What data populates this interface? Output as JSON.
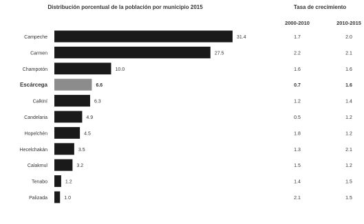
{
  "chart_data": {
    "type": "bar",
    "orientation": "horizontal",
    "title": "Distribución porcentual de la población por municipio 2015",
    "categories": [
      "Campeche",
      "Carmen",
      "Champotón",
      "Escárcega",
      "Calkiní",
      "Candelaria",
      "Hopelchén",
      "Hecelchakán",
      "Calakmul",
      "Tenabo",
      "Palizada"
    ],
    "values": [
      31.4,
      27.5,
      10.0,
      6.6,
      6.3,
      4.9,
      4.5,
      3.5,
      3.2,
      1.2,
      1.0
    ],
    "value_labels": [
      "31.4",
      "27.5",
      "10.0",
      "6.6",
      "6.3",
      "4.9",
      "4.5",
      "3.5",
      "3.2",
      "1.2",
      "1.0"
    ],
    "highlight": "Escárcega",
    "colors": {
      "bar": "#1a1a1a",
      "highlight": "#8c8c8c",
      "text": "#333333"
    },
    "growth_table": {
      "title": "Tasa de crecimiento",
      "columns": [
        "2000-2010",
        "2010-2015"
      ],
      "rows": [
        [
          "1.7",
          "2.0"
        ],
        [
          "2.2",
          "2.1"
        ],
        [
          "1.6",
          "1.6"
        ],
        [
          "0.7",
          "1.6"
        ],
        [
          "1.2",
          "1.4"
        ],
        [
          "0.5",
          "1.2"
        ],
        [
          "1.8",
          "1.2"
        ],
        [
          "1.3",
          "2.1"
        ],
        [
          "1.5",
          "1.2"
        ],
        [
          "1.4",
          "1.5"
        ],
        [
          "2.1",
          "1.5"
        ]
      ]
    }
  }
}
